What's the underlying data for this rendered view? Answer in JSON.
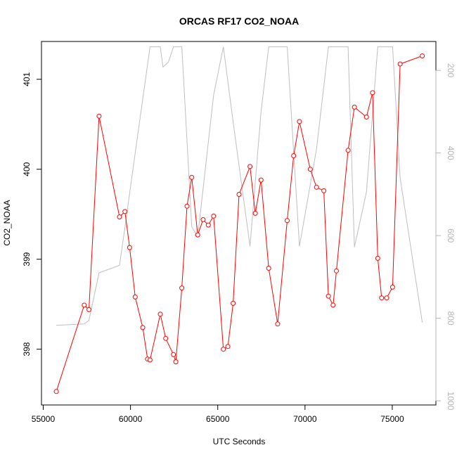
{
  "chart_data": {
    "type": "line",
    "title": "ORCAS RF17 CO2_NOAA",
    "xlabel": "UTC Seconds",
    "ylabel": "CO2_NOAA",
    "y2label": "",
    "xlim": [
      54900,
      77500
    ],
    "ylim": [
      397.38,
      401.42
    ],
    "y2lim": [
      1010,
      130
    ],
    "y2_inverted": true,
    "x_ticks": [
      55000,
      60000,
      65000,
      70000,
      75000
    ],
    "y_ticks": [
      398,
      399,
      400,
      401
    ],
    "y2_ticks": [
      200,
      400,
      600,
      800,
      1000
    ],
    "grid": false,
    "legend": "none",
    "colors": {
      "primary": "#ff0000",
      "secondary": "#bebebe",
      "axis": "#000000",
      "axis_right": "#b3b3b3"
    },
    "series": [
      {
        "axis": "left",
        "style": "line-points",
        "color": "#ff0000",
        "points": [
          [
            55750,
            397.53
          ],
          [
            57350,
            398.49
          ],
          [
            57620,
            398.44
          ],
          [
            58200,
            400.59
          ],
          [
            59370,
            399.47
          ],
          [
            59680,
            399.53
          ],
          [
            59950,
            399.13
          ],
          [
            60270,
            398.58
          ],
          [
            60700,
            398.24
          ],
          [
            60980,
            397.89
          ],
          [
            61120,
            397.88
          ],
          [
            61710,
            398.39
          ],
          [
            62020,
            398.12
          ],
          [
            62460,
            397.94
          ],
          [
            62600,
            397.86
          ],
          [
            62940,
            398.68
          ],
          [
            63240,
            399.59
          ],
          [
            63510,
            399.91
          ],
          [
            63850,
            399.27
          ],
          [
            64160,
            399.44
          ],
          [
            64460,
            399.38
          ],
          [
            64760,
            399.48
          ],
          [
            65320,
            398.0
          ],
          [
            65580,
            398.03
          ],
          [
            65880,
            398.51
          ],
          [
            66220,
            399.72
          ],
          [
            66850,
            400.03
          ],
          [
            67150,
            399.51
          ],
          [
            67480,
            399.88
          ],
          [
            67920,
            398.9
          ],
          [
            68430,
            398.28
          ],
          [
            68980,
            399.43
          ],
          [
            69350,
            400.15
          ],
          [
            69680,
            400.53
          ],
          [
            70300,
            400.0
          ],
          [
            70660,
            399.8
          ],
          [
            71080,
            399.76
          ],
          [
            71340,
            398.59
          ],
          [
            71610,
            398.49
          ],
          [
            71800,
            398.87
          ],
          [
            72470,
            400.21
          ],
          [
            72830,
            400.69
          ],
          [
            73520,
            400.58
          ],
          [
            73870,
            400.85
          ],
          [
            74170,
            399.01
          ],
          [
            74390,
            398.57
          ],
          [
            74680,
            398.57
          ],
          [
            75020,
            398.69
          ],
          [
            75450,
            401.17
          ],
          [
            76720,
            401.26
          ]
        ]
      },
      {
        "axis": "right",
        "style": "line",
        "color": "#bebebe",
        "points": [
          [
            55750,
            817
          ],
          [
            57350,
            814
          ],
          [
            57620,
            805
          ],
          [
            58200,
            690
          ],
          [
            59370,
            672
          ],
          [
            59680,
            580
          ],
          [
            60270,
            400
          ],
          [
            61120,
            143
          ],
          [
            61710,
            143
          ],
          [
            61860,
            192
          ],
          [
            62170,
            180
          ],
          [
            62460,
            143
          ],
          [
            62940,
            143
          ],
          [
            63510,
            578
          ],
          [
            63850,
            603
          ],
          [
            64760,
            260
          ],
          [
            65320,
            143
          ],
          [
            65880,
            325
          ],
          [
            66850,
            626
          ],
          [
            67480,
            300
          ],
          [
            67920,
            143
          ],
          [
            68980,
            143
          ],
          [
            69680,
            626
          ],
          [
            70660,
            390
          ],
          [
            71340,
            143
          ],
          [
            72470,
            143
          ],
          [
            72830,
            628
          ],
          [
            73520,
            495
          ],
          [
            74170,
            143
          ],
          [
            75020,
            143
          ],
          [
            75450,
            460
          ],
          [
            76720,
            810
          ]
        ]
      }
    ]
  }
}
